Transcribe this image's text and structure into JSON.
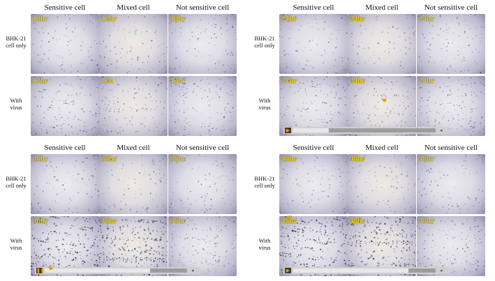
{
  "columns": [
    "Sensitive cell",
    "Mixed cell",
    "Not sensitive cell"
  ],
  "rows": [
    {
      "label_line1": "BHK-21",
      "label_line2": "cell only"
    },
    {
      "label_line1": "With",
      "label_line2": "virus"
    }
  ],
  "panels": [
    {
      "id": "p12",
      "times": [
        [
          "12hr",
          "12hr",
          "12hr"
        ],
        [
          "12hr",
          "12h",
          "12hr"
        ]
      ],
      "player": null
    },
    {
      "id": "p24",
      "times": [
        [
          "24hr",
          "24hr",
          "24hr"
        ],
        [
          "24hr",
          "24hr",
          "24hr"
        ]
      ],
      "player": {
        "state": "paused",
        "button_glyph": "▶",
        "progress": 0.25
      }
    },
    {
      "id": "p36",
      "times": [
        [
          "36hr",
          "36hr",
          "36hr"
        ],
        [
          "36hr",
          "36hr",
          "36hr"
        ]
      ],
      "player": {
        "state": "playing",
        "button_glyph": "❚❚",
        "progress": 0.74
      }
    },
    {
      "id": "p48",
      "times": [
        [
          "48hr",
          "48hr",
          "48hr"
        ],
        [
          "48hr",
          "48hr",
          "48hr"
        ]
      ],
      "player": {
        "state": "paused",
        "button_glyph": "▶",
        "progress": 0.81
      }
    }
  ],
  "player_volume_glyph": "◂"
}
